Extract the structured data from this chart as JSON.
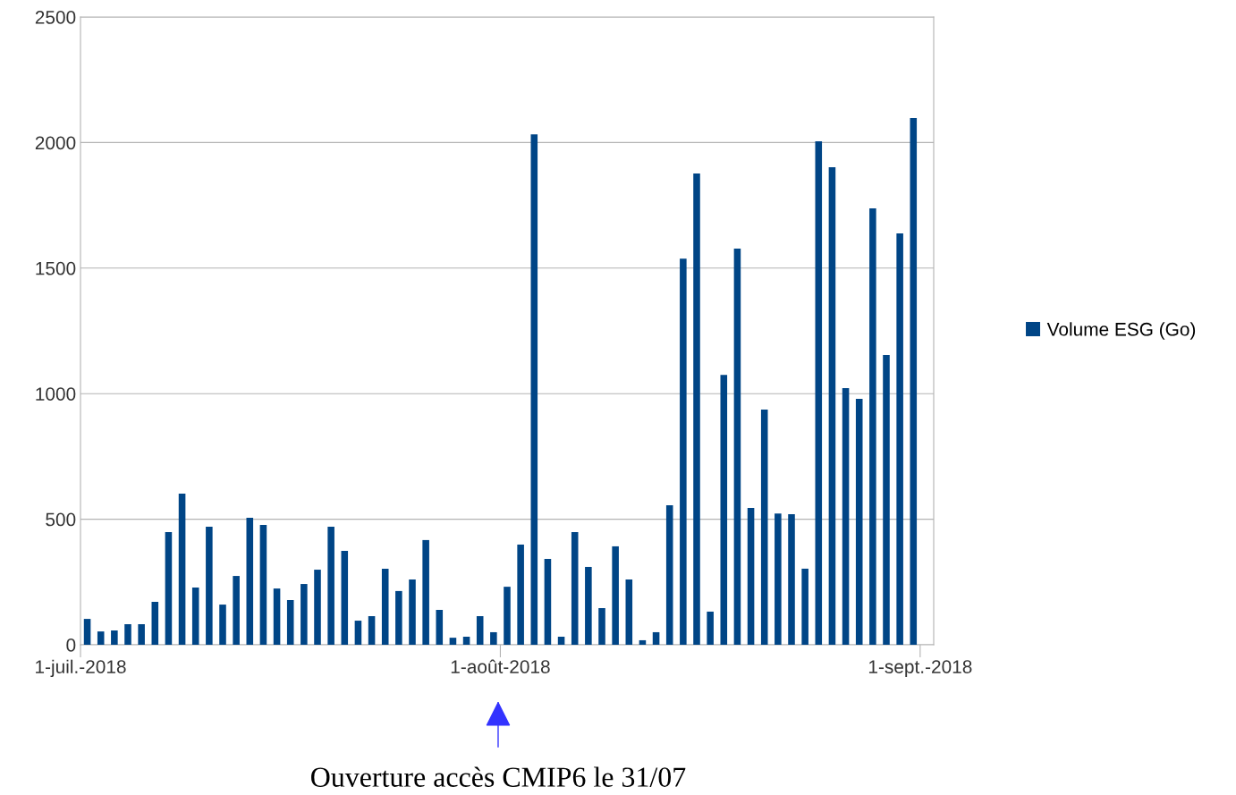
{
  "chart_data": {
    "type": "bar",
    "x": [
      "2018-07-01T12:00",
      "2018-07-02T12:00",
      "2018-07-03T12:00",
      "2018-07-04T12:00",
      "2018-07-05T12:00",
      "2018-07-06T12:00",
      "2018-07-07T12:00",
      "2018-07-08T12:00",
      "2018-07-09T12:00",
      "2018-07-10T12:00",
      "2018-07-11T12:00",
      "2018-07-12T12:00",
      "2018-07-13T12:00",
      "2018-07-14T12:00",
      "2018-07-15T12:00",
      "2018-07-16T12:00",
      "2018-07-17T12:00",
      "2018-07-18T12:00",
      "2018-07-19T12:00",
      "2018-07-20T12:00",
      "2018-07-21T12:00",
      "2018-07-22T12:00",
      "2018-07-23T12:00",
      "2018-07-24T12:00",
      "2018-07-25T12:00",
      "2018-07-26T12:00",
      "2018-07-27T12:00",
      "2018-07-28T12:00",
      "2018-07-29T12:00",
      "2018-07-30T12:00",
      "2018-07-31T12:00",
      "2018-08-01T12:00",
      "2018-08-02T12:00",
      "2018-08-03T12:00",
      "2018-08-04T12:00",
      "2018-08-05T12:00",
      "2018-08-06T12:00",
      "2018-08-07T12:00",
      "2018-08-08T12:00",
      "2018-08-09T12:00",
      "2018-08-10T12:00",
      "2018-08-11T12:00",
      "2018-08-12T12:00",
      "2018-08-13T12:00",
      "2018-08-14T12:00",
      "2018-08-15T12:00",
      "2018-08-16T12:00",
      "2018-08-17T12:00",
      "2018-08-18T12:00",
      "2018-08-19T12:00",
      "2018-08-20T12:00",
      "2018-08-21T12:00",
      "2018-08-22T12:00",
      "2018-08-23T12:00",
      "2018-08-24T12:00",
      "2018-08-25T12:00",
      "2018-08-26T12:00",
      "2018-08-27T12:00",
      "2018-08-28T12:00",
      "2018-08-29T12:00",
      "2018-08-30T12:00",
      "2018-08-31T12:00"
    ],
    "series": [
      {
        "name": "Volume ESG (Go)",
        "color": "#004586",
        "values": [
          103,
          53,
          57,
          82,
          82,
          171,
          449,
          602,
          228,
          470,
          160,
          274,
          506,
          477,
          224,
          178,
          242,
          299,
          470,
          374,
          96,
          114,
          303,
          214,
          260,
          417,
          139,
          28,
          32,
          114,
          50,
          231,
          399,
          2033,
          342,
          32,
          449,
          310,
          146,
          392,
          260,
          18,
          50,
          556,
          1538,
          1877,
          132,
          1075,
          1578,
          545,
          937,
          523,
          520,
          303,
          2005,
          1902,
          1022,
          979,
          1738,
          1154,
          1638,
          2098
        ]
      }
    ],
    "xlim": [
      "2018-07-01",
      "2018-09-02"
    ],
    "xticks": [
      {
        "value": "2018-07-01",
        "label": "1-juil.-2018"
      },
      {
        "value": "2018-08-01",
        "label": "1-août-2018"
      },
      {
        "value": "2018-09-01",
        "label": "1-sept.-2018"
      }
    ],
    "ylim": [
      0,
      2500
    ],
    "yticks": [
      0,
      500,
      1000,
      1500,
      2000,
      2500
    ],
    "grid": "y",
    "legend": "right",
    "annotations": [
      "Ouverture accès CMIP6 le 31/07"
    ]
  }
}
